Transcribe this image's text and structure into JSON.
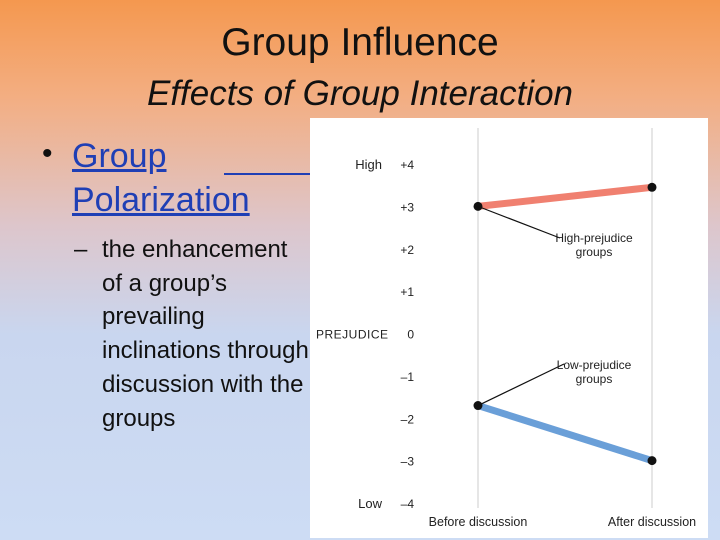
{
  "slide": {
    "title": "Group Influence",
    "subtitle": "Effects of Group Interaction",
    "bullet": {
      "marker": "•",
      "link_text": "Group Polarization"
    },
    "sub_bullet": {
      "marker": "–",
      "text": "the enhancement of a group’s prevailing inclinations through discussion with the groups"
    }
  },
  "colors": {
    "high_prejudice": "#f08070",
    "low_prejudice": "#6a9fd8",
    "link": "#1f3fb5",
    "gridline": "#dddddd",
    "axis_text": "#222222"
  },
  "chart_data": {
    "type": "line",
    "x": [
      "Before discussion",
      "After discussion"
    ],
    "ylabel": "PREJUDICE",
    "ylim": [
      -4,
      4
    ],
    "yticks": [
      "+4",
      "+3",
      "+2",
      "+1",
      "0",
      "–1",
      "–2",
      "–3",
      "–4"
    ],
    "ytick_values": [
      4,
      3,
      2,
      1,
      0,
      -1,
      -2,
      -3,
      -4
    ],
    "y_end_labels": {
      "top": "High",
      "bottom": "Low"
    },
    "series": [
      {
        "name": "High-prejudice groups",
        "values": [
          3.0,
          3.45
        ]
      },
      {
        "name": "Low-prejudice groups",
        "values": [
          -1.7,
          -3.0
        ]
      }
    ],
    "annotations": [
      {
        "line1": "High-prejudice",
        "line2": "groups",
        "series": 0
      },
      {
        "line1": "Low-prejudice",
        "line2": "groups",
        "series": 1
      }
    ],
    "grid": true,
    "legend": "none"
  }
}
